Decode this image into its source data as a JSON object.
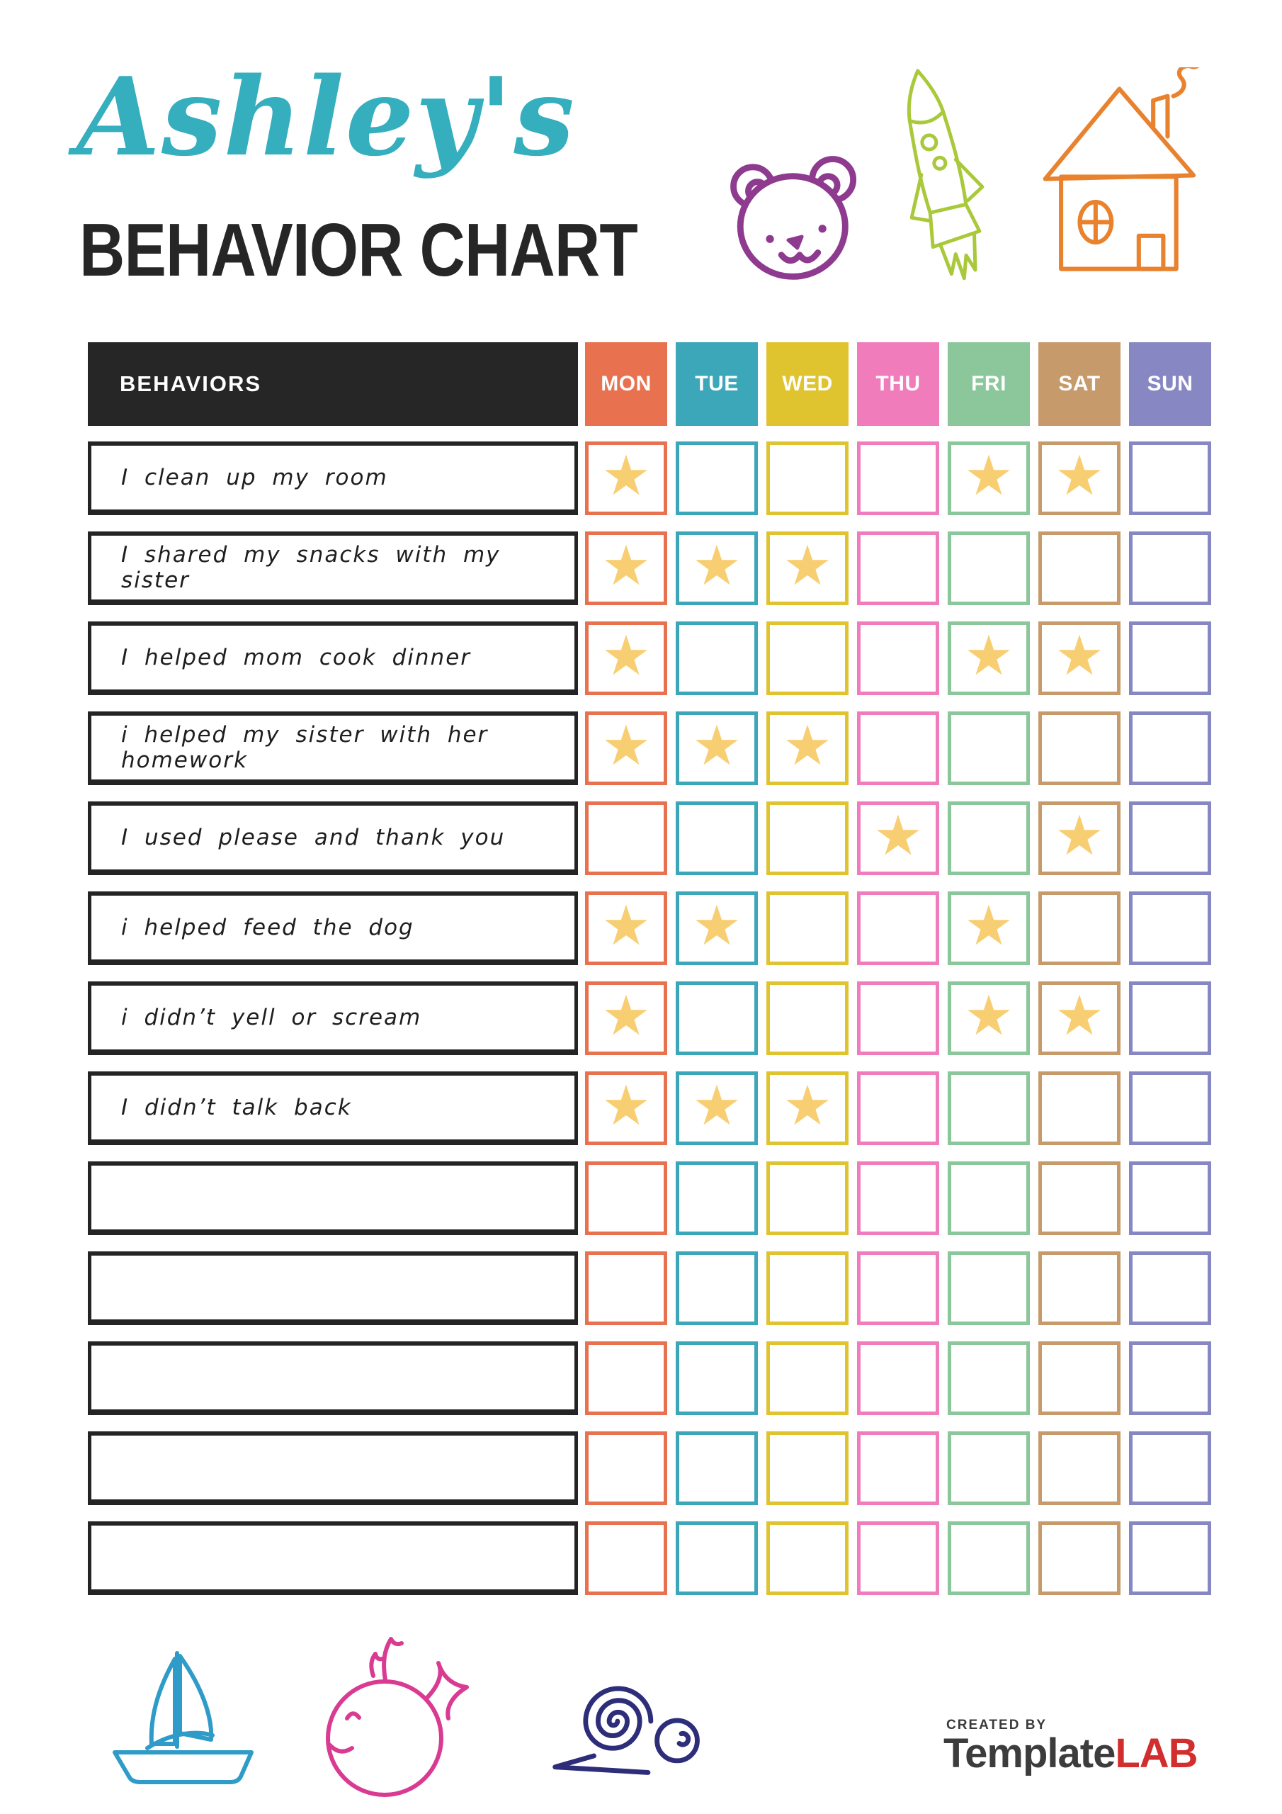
{
  "header": {
    "name": "Ashley's",
    "name_color": "#35AEBE",
    "title": "BEHAVIOR CHART",
    "title_color": "#262626"
  },
  "doodles": {
    "bear_color": "#8E3B8F",
    "rocket_color": "#A9C93B",
    "house_color": "#E8822E",
    "sailboat_color": "#2E9BC8",
    "whale_color": "#D93A92",
    "snail_color": "#2D2D7A"
  },
  "table": {
    "behaviors_header": "BEHAVIORS",
    "header_bg": "#262626",
    "star_glyph": "★",
    "star_color": "#F8CE72",
    "days": [
      {
        "key": "MON",
        "label": "MON",
        "color": "#E8724F"
      },
      {
        "key": "TUE",
        "label": "TUE",
        "color": "#3BA7B8"
      },
      {
        "key": "WED",
        "label": "WED",
        "color": "#DFC32F"
      },
      {
        "key": "THU",
        "label": "THU",
        "color": "#F07CBB"
      },
      {
        "key": "FRI",
        "label": "FRI",
        "color": "#8BC79B"
      },
      {
        "key": "SAT",
        "label": "SAT",
        "color": "#C69A6B"
      },
      {
        "key": "SUN",
        "label": "SUN",
        "color": "#8787C3"
      }
    ],
    "rows": [
      {
        "behavior": "I clean up my room",
        "stars": [
          "MON",
          "FRI",
          "SAT"
        ]
      },
      {
        "behavior": "I shared my snacks with my sister",
        "stars": [
          "MON",
          "TUE",
          "WED"
        ]
      },
      {
        "behavior": "I helped mom cook dinner",
        "stars": [
          "MON",
          "FRI",
          "SAT"
        ]
      },
      {
        "behavior": "i helped my sister with her homework",
        "stars": [
          "MON",
          "TUE",
          "WED"
        ]
      },
      {
        "behavior": "I used please and thank you",
        "stars": [
          "THU",
          "SAT"
        ]
      },
      {
        "behavior": "i helped feed the dog",
        "stars": [
          "MON",
          "TUE",
          "FRI"
        ]
      },
      {
        "behavior": "i didn’t yell or scream",
        "stars": [
          "MON",
          "FRI",
          "SAT"
        ]
      },
      {
        "behavior": "I didn’t talk back",
        "stars": [
          "MON",
          "TUE",
          "WED"
        ]
      },
      {
        "behavior": "",
        "stars": []
      },
      {
        "behavior": "",
        "stars": []
      },
      {
        "behavior": "",
        "stars": []
      },
      {
        "behavior": "",
        "stars": []
      },
      {
        "behavior": "",
        "stars": []
      }
    ]
  },
  "footer": {
    "created_by": "CREATED BY",
    "brand_dark": "Template",
    "brand_red": "LAB",
    "brand_dark_color": "#3C3C3C",
    "brand_red_color": "#D22E2E"
  }
}
